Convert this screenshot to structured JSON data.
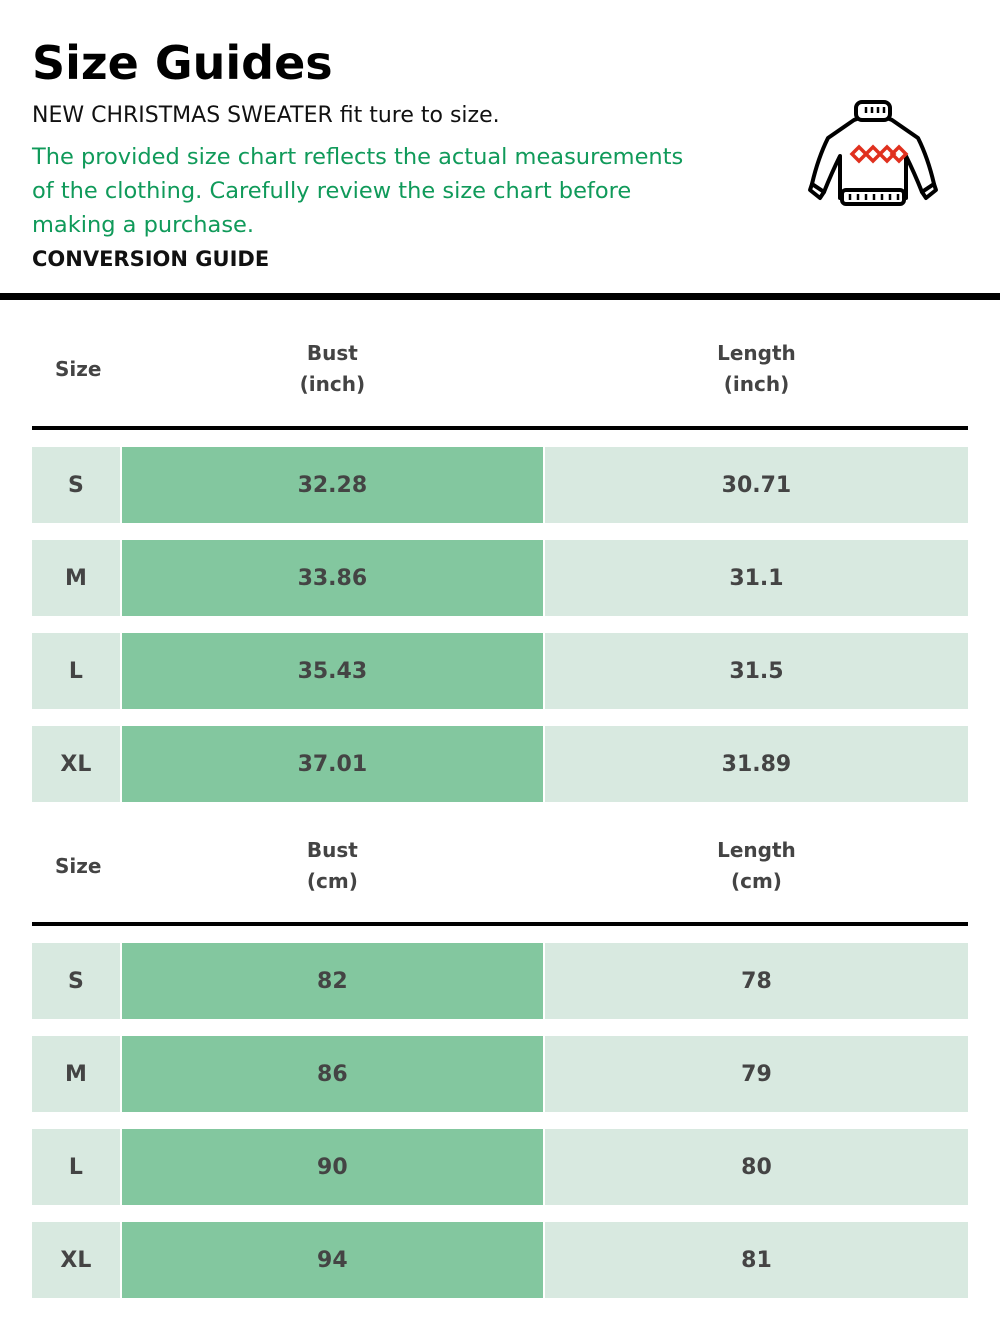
{
  "header": {
    "title": "Size Guides",
    "subtitle": "NEW CHRISTMAS SWEATER fit ture to size.",
    "description": "The provided size chart reflects the actual measurements of the clothing. Carefully review the size chart before making a purchase.",
    "section_label": "CONVERSION GUIDE",
    "icon": "sweater-icon"
  },
  "colors": {
    "accent_text": "#109a5a",
    "bust_cell": "#83c79f",
    "light_cell": "#d8e9e0"
  },
  "tables": [
    {
      "headers": [
        "Size",
        "Bust",
        "(inch)",
        "Length",
        "(inch)"
      ],
      "rows": [
        [
          "S",
          "32.28",
          "30.71"
        ],
        [
          "M",
          "33.86",
          "31.1"
        ],
        [
          "L",
          "35.43",
          "31.5"
        ],
        [
          "XL",
          "37.01",
          "31.89"
        ]
      ]
    },
    {
      "headers": [
        "Size",
        "Bust",
        "(cm)",
        "Length",
        "(cm)"
      ],
      "rows": [
        [
          "S",
          "82",
          "78"
        ],
        [
          "M",
          "86",
          "79"
        ],
        [
          "L",
          "90",
          "80"
        ],
        [
          "XL",
          "94",
          "81"
        ]
      ]
    }
  ]
}
